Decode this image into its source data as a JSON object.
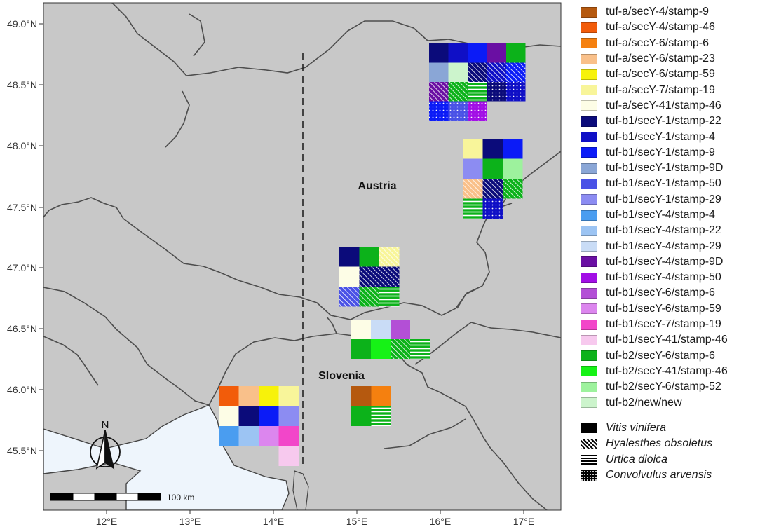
{
  "map": {
    "country_labels": [
      "Austria",
      "Slovenia"
    ],
    "latitude_ticks": [
      "49.0°N",
      "48.5°N",
      "48.0°N",
      "47.5°N",
      "47.0°N",
      "46.5°N",
      "46.0°N",
      "45.5°N"
    ],
    "longitude_ticks": [
      "12°E",
      "13°E",
      "14°E",
      "15°E",
      "16°E",
      "17°E"
    ],
    "north_arrow_label": "N",
    "scale_bar_label": "100 km"
  },
  "legend": {
    "strains": [
      {
        "label": "tuf-a/secY-4/stamp-9",
        "color": "#b5590f"
      },
      {
        "label": "tuf-a/secY-4/stamp-46",
        "color": "#f25c0a"
      },
      {
        "label": "tuf-a/secY-6/stamp-6",
        "color": "#f5800f"
      },
      {
        "label": "tuf-a/secY-6/stamp-23",
        "color": "#f9c08a"
      },
      {
        "label": "tuf-a/secY-6/stamp-59",
        "color": "#f7f20a"
      },
      {
        "label": "tuf-a/secY-7/stamp-19",
        "color": "#f8f59a"
      },
      {
        "label": "tuf-a/secY-41/stamp-46",
        "color": "#fdfde6"
      },
      {
        "label": "tuf-b1/secY-1/stamp-22",
        "color": "#0b0b7a"
      },
      {
        "label": "tuf-b1/secY-1/stamp-4",
        "color": "#0f0fc6"
      },
      {
        "label": "tuf-b1/secY-1/stamp-9",
        "color": "#0b1bf7"
      },
      {
        "label": "tuf-b1/secY-1/stamp-9D",
        "color": "#8aa6d6"
      },
      {
        "label": "tuf-b1/secY-1/stamp-50",
        "color": "#4a52e6"
      },
      {
        "label": "tuf-b1/secY-1/stamp-29",
        "color": "#8c8cf2"
      },
      {
        "label": "tuf-b1/secY-4/stamp-4",
        "color": "#4a9df0"
      },
      {
        "label": "tuf-b1/secY-4/stamp-22",
        "color": "#9cc4f3"
      },
      {
        "label": "tuf-b1/secY-4/stamp-29",
        "color": "#c9dcf6"
      },
      {
        "label": "tuf-b1/secY-4/stamp-9D",
        "color": "#6a0fa3"
      },
      {
        "label": "tuf-b1/secY-4/stamp-50",
        "color": "#a20ee6"
      },
      {
        "label": "tuf-b1/secY-6/stamp-6",
        "color": "#b34fd6"
      },
      {
        "label": "tuf-b1/secY-6/stamp-59",
        "color": "#dc86ee"
      },
      {
        "label": "tuf-b1/secY-7/stamp-19",
        "color": "#f246c9"
      },
      {
        "label": "tuf-b1/secY-41/stamp-46",
        "color": "#f7c9ee"
      },
      {
        "label": "tuf-b2/secY-6/stamp-6",
        "color": "#0cb21a"
      },
      {
        "label": "tuf-b2/secY-41/stamp-46",
        "color": "#16f216"
      },
      {
        "label": "tuf-b2/secY-6/stamp-52",
        "color": "#9df29d"
      },
      {
        "label": "tuf-b2/new/new",
        "color": "#ccf4cc"
      }
    ],
    "hosts": [
      {
        "label": "Vitis vinifera",
        "pattern": "solid"
      },
      {
        "label": "Hyalesthes obsoletus",
        "pattern": "diagonal"
      },
      {
        "label": "Urtica dioica",
        "pattern": "horizontal"
      },
      {
        "label": "Convolvulus arvensis",
        "pattern": "dots"
      }
    ]
  }
}
